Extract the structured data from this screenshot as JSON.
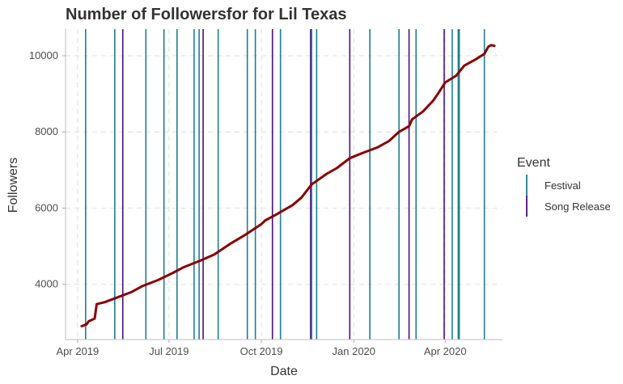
{
  "chart_data": {
    "type": "line",
    "title": "Number of Followersfor for Lil Texas",
    "xlabel": "Date",
    "ylabel": "Followers",
    "x_ticks": [
      "Apr 2019",
      "Jul 2019",
      "Oct 2019",
      "Jan 2020",
      "Apr 2020"
    ],
    "y_ticks": [
      4000,
      6000,
      8000,
      10000
    ],
    "xlim": [
      "2019-03-20",
      "2020-05-28"
    ],
    "ylim": [
      2550,
      10700
    ],
    "grid": true,
    "legend": {
      "title": "Event",
      "position": "right",
      "entries": [
        {
          "label": "Festival",
          "color": "#1f7f8f"
        },
        {
          "label": "Song Release",
          "color": "#4b0f80"
        }
      ]
    },
    "series": [
      {
        "color": "#8b0000",
        "points": [
          [
            "2019-04-05",
            2900
          ],
          [
            "2019-04-10",
            2950
          ],
          [
            "2019-04-12",
            3030
          ],
          [
            "2019-04-18",
            3100
          ],
          [
            "2019-04-20",
            3480
          ],
          [
            "2019-04-28",
            3530
          ],
          [
            "2019-05-10",
            3650
          ],
          [
            "2019-05-25",
            3800
          ],
          [
            "2019-06-05",
            3960
          ],
          [
            "2019-06-20",
            4110
          ],
          [
            "2019-07-05",
            4300
          ],
          [
            "2019-07-15",
            4440
          ],
          [
            "2019-08-01",
            4620
          ],
          [
            "2019-08-15",
            4780
          ],
          [
            "2019-09-01",
            5080
          ],
          [
            "2019-09-15",
            5300
          ],
          [
            "2019-10-01",
            5580
          ],
          [
            "2019-10-05",
            5680
          ],
          [
            "2019-10-15",
            5820
          ],
          [
            "2019-11-01",
            6080
          ],
          [
            "2019-11-10",
            6280
          ],
          [
            "2019-11-20",
            6620
          ],
          [
            "2019-12-05",
            6900
          ],
          [
            "2019-12-15",
            7050
          ],
          [
            "2019-12-28",
            7310
          ],
          [
            "2020-01-10",
            7450
          ],
          [
            "2020-01-25",
            7600
          ],
          [
            "2020-02-05",
            7760
          ],
          [
            "2020-02-15",
            8000
          ],
          [
            "2020-02-25",
            8150
          ],
          [
            "2020-02-28",
            8330
          ],
          [
            "2020-03-10",
            8540
          ],
          [
            "2020-03-20",
            8820
          ],
          [
            "2020-03-26",
            9050
          ],
          [
            "2020-04-01",
            9300
          ],
          [
            "2020-04-12",
            9480
          ],
          [
            "2020-04-20",
            9740
          ],
          [
            "2020-05-01",
            9900
          ],
          [
            "2020-05-10",
            10050
          ],
          [
            "2020-05-14",
            10240
          ],
          [
            "2020-05-17",
            10280
          ],
          [
            "2020-05-20",
            10260
          ]
        ]
      }
    ],
    "events": [
      {
        "date": "2019-04-09",
        "type": "Festival"
      },
      {
        "date": "2019-05-08",
        "type": "Festival"
      },
      {
        "date": "2019-05-16",
        "type": "Song Release"
      },
      {
        "date": "2019-06-08",
        "type": "Festival"
      },
      {
        "date": "2019-06-26",
        "type": "Festival"
      },
      {
        "date": "2019-07-09",
        "type": "Festival"
      },
      {
        "date": "2019-07-26",
        "type": "Festival"
      },
      {
        "date": "2019-07-31",
        "type": "Festival"
      },
      {
        "date": "2019-08-04",
        "type": "Song Release"
      },
      {
        "date": "2019-08-19",
        "type": "Festival"
      },
      {
        "date": "2019-09-17",
        "type": "Festival"
      },
      {
        "date": "2019-09-25",
        "type": "Festival"
      },
      {
        "date": "2019-10-12",
        "type": "Song Release"
      },
      {
        "date": "2019-10-20",
        "type": "Festival"
      },
      {
        "date": "2019-11-19",
        "type": "Song Release"
      },
      {
        "date": "2019-11-20",
        "type": "Festival"
      },
      {
        "date": "2019-11-25",
        "type": "Festival"
      },
      {
        "date": "2019-12-28",
        "type": "Song Release"
      },
      {
        "date": "2020-01-17",
        "type": "Festival"
      },
      {
        "date": "2020-02-15",
        "type": "Festival"
      },
      {
        "date": "2020-02-25",
        "type": "Song Release"
      },
      {
        "date": "2020-03-03",
        "type": "Festival"
      },
      {
        "date": "2020-03-31",
        "type": "Song Release"
      },
      {
        "date": "2020-04-08",
        "type": "Festival"
      },
      {
        "date": "2020-04-14",
        "type": "Festival"
      },
      {
        "date": "2020-04-15",
        "type": "Festival"
      },
      {
        "date": "2020-05-10",
        "type": "Festival"
      }
    ]
  }
}
